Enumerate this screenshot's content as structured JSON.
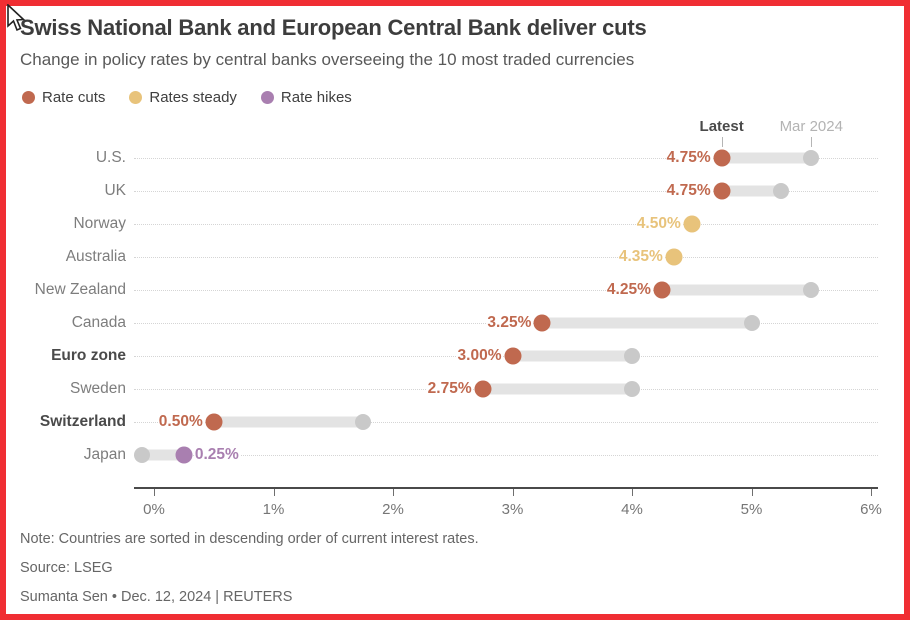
{
  "header": {
    "title": "Swiss National Bank and European Central Bank deliver cuts",
    "subtitle": "Change in policy rates by central banks overseeing the 10 most traded currencies"
  },
  "legend": [
    {
      "label": "Rate cuts",
      "color": "#c0694f"
    },
    {
      "label": "Rates steady",
      "color": "#e8c37b"
    },
    {
      "label": "Rate hikes",
      "color": "#a97fb0"
    }
  ],
  "chart_data": {
    "type": "dumbbell",
    "title": "Swiss National Bank and European Central Bank deliver cuts",
    "subtitle": "Change in policy rates by central banks overseeing the 10 most traded currencies",
    "series_labels": {
      "latest": "Latest",
      "previous": "Mar 2024"
    },
    "header_marks": {
      "latest_at": 4.75,
      "previous_at": 5.5
    },
    "status_colors": {
      "cut": "#c0694f",
      "steady": "#e8c37b",
      "hike": "#a97fb0",
      "previous": "#c9c9c9"
    },
    "x_axis": {
      "min": 0,
      "max": 6,
      "tick_values": [
        0,
        1,
        2,
        3,
        4,
        5,
        6
      ],
      "tick_labels": [
        "0%",
        "1%",
        "2%",
        "3%",
        "4%",
        "5%",
        "6%"
      ]
    },
    "rows": [
      {
        "country": "U.S.",
        "bold": false,
        "latest": 4.75,
        "value_label": "4.75%",
        "mar2024": 5.5,
        "status": "cut",
        "label_side": "left"
      },
      {
        "country": "UK",
        "bold": false,
        "latest": 4.75,
        "value_label": "4.75%",
        "mar2024": 5.25,
        "status": "cut",
        "label_side": "left"
      },
      {
        "country": "Norway",
        "bold": false,
        "latest": 4.5,
        "value_label": "4.50%",
        "mar2024": 4.5,
        "status": "steady",
        "label_side": "left"
      },
      {
        "country": "Australia",
        "bold": false,
        "latest": 4.35,
        "value_label": "4.35%",
        "mar2024": 4.35,
        "status": "steady",
        "label_side": "left"
      },
      {
        "country": "New Zealand",
        "bold": false,
        "latest": 4.25,
        "value_label": "4.25%",
        "mar2024": 5.5,
        "status": "cut",
        "label_side": "left"
      },
      {
        "country": "Canada",
        "bold": false,
        "latest": 3.25,
        "value_label": "3.25%",
        "mar2024": 5.0,
        "status": "cut",
        "label_side": "left"
      },
      {
        "country": "Euro zone",
        "bold": true,
        "latest": 3.0,
        "value_label": "3.00%",
        "mar2024": 4.0,
        "status": "cut",
        "label_side": "left"
      },
      {
        "country": "Sweden",
        "bold": false,
        "latest": 2.75,
        "value_label": "2.75%",
        "mar2024": 4.0,
        "status": "cut",
        "label_side": "left"
      },
      {
        "country": "Switzerland",
        "bold": true,
        "latest": 0.5,
        "value_label": "0.50%",
        "mar2024": 1.75,
        "status": "cut",
        "label_side": "left"
      },
      {
        "country": "Japan",
        "bold": false,
        "latest": 0.25,
        "value_label": "0.25%",
        "mar2024": -0.1,
        "status": "hike",
        "label_side": "right"
      }
    ]
  },
  "footer": {
    "note": "Note: Countries are sorted in descending order of current interest rates.",
    "source": "Source: LSEG",
    "byline": "Sumanta Sen • Dec. 12, 2024 | REUTERS"
  }
}
